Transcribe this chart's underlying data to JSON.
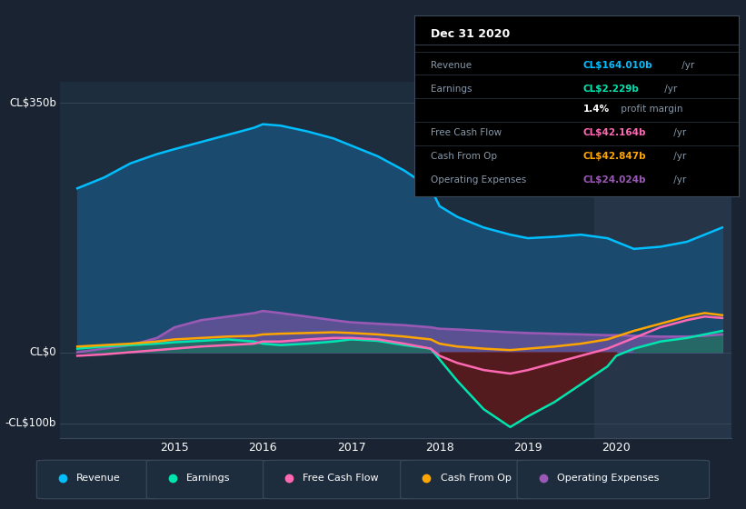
{
  "bg_color": "#1a2332",
  "plot_bg_color": "#1e2d3d",
  "highlight_bg": "#263547",
  "ylabel_top": "CL$350b",
  "ylabel_zero": "CL$0",
  "ylabel_bottom": "-CL$100b",
  "ylim": [
    -120,
    380
  ],
  "xlim": [
    2013.7,
    2021.3
  ],
  "x_ticks": [
    2015,
    2016,
    2017,
    2018,
    2019,
    2020
  ],
  "revenue_color": "#00bfff",
  "earnings_color": "#00e5b0",
  "fcf_color": "#ff69b4",
  "cashfromop_color": "#ffa500",
  "opex_color": "#9b59b6",
  "revenue_fill": "#1a4a6e",
  "earnings_fill_pos": "#1a6e5a",
  "earnings_fill_neg": "#5a1a1a",
  "tooltip_bg": "#000000",
  "tooltip_border": "#3a4a5a",
  "revenue_x": [
    2013.9,
    2014.2,
    2014.5,
    2014.8,
    2015.0,
    2015.3,
    2015.6,
    2015.9,
    2016.0,
    2016.2,
    2016.5,
    2016.8,
    2017.0,
    2017.3,
    2017.6,
    2017.9,
    2018.0,
    2018.2,
    2018.5,
    2018.8,
    2019.0,
    2019.3,
    2019.6,
    2019.9,
    2020.0,
    2020.2,
    2020.5,
    2020.8,
    2021.0,
    2021.2
  ],
  "revenue_y": [
    230,
    245,
    265,
    278,
    285,
    295,
    305,
    315,
    320,
    318,
    310,
    300,
    290,
    275,
    255,
    230,
    205,
    190,
    175,
    165,
    160,
    162,
    165,
    160,
    155,
    145,
    148,
    155,
    165,
    175
  ],
  "earnings_x": [
    2013.9,
    2014.2,
    2014.5,
    2014.8,
    2015.0,
    2015.3,
    2015.6,
    2015.9,
    2016.0,
    2016.2,
    2016.5,
    2016.8,
    2017.0,
    2017.3,
    2017.6,
    2017.9,
    2018.0,
    2018.2,
    2018.5,
    2018.8,
    2019.0,
    2019.3,
    2019.6,
    2019.9,
    2020.0,
    2020.2,
    2020.5,
    2020.8,
    2021.0,
    2021.2
  ],
  "earnings_y": [
    5,
    8,
    10,
    12,
    14,
    16,
    18,
    15,
    12,
    10,
    12,
    15,
    18,
    16,
    10,
    5,
    -10,
    -40,
    -80,
    -105,
    -90,
    -70,
    -45,
    -20,
    -5,
    5,
    15,
    20,
    25,
    30
  ],
  "fcf_x": [
    2013.9,
    2014.2,
    2014.5,
    2014.8,
    2015.0,
    2015.3,
    2015.6,
    2015.9,
    2016.0,
    2016.2,
    2016.5,
    2016.8,
    2017.0,
    2017.3,
    2017.6,
    2017.9,
    2018.0,
    2018.2,
    2018.5,
    2018.8,
    2019.0,
    2019.3,
    2019.6,
    2019.9,
    2020.0,
    2020.2,
    2020.5,
    2020.8,
    2021.0,
    2021.2
  ],
  "fcf_y": [
    -5,
    -3,
    0,
    3,
    5,
    8,
    10,
    12,
    15,
    15,
    18,
    20,
    20,
    18,
    12,
    5,
    -5,
    -15,
    -25,
    -30,
    -25,
    -15,
    -5,
    5,
    10,
    20,
    35,
    45,
    50,
    48
  ],
  "cashfromop_x": [
    2013.9,
    2014.2,
    2014.5,
    2014.8,
    2015.0,
    2015.3,
    2015.6,
    2015.9,
    2016.0,
    2016.2,
    2016.5,
    2016.8,
    2017.0,
    2017.3,
    2017.6,
    2017.9,
    2018.0,
    2018.2,
    2018.5,
    2018.8,
    2019.0,
    2019.3,
    2019.6,
    2019.9,
    2020.0,
    2020.2,
    2020.5,
    2020.8,
    2021.0,
    2021.2
  ],
  "cashfromop_y": [
    8,
    10,
    12,
    15,
    18,
    20,
    22,
    23,
    25,
    26,
    27,
    28,
    27,
    25,
    22,
    18,
    12,
    8,
    5,
    3,
    5,
    8,
    12,
    18,
    22,
    30,
    40,
    50,
    55,
    52
  ],
  "opex_x": [
    2013.9,
    2014.2,
    2014.5,
    2014.8,
    2015.0,
    2015.3,
    2015.6,
    2015.9,
    2016.0,
    2016.2,
    2016.5,
    2016.8,
    2017.0,
    2017.3,
    2017.6,
    2017.9,
    2018.0,
    2018.2,
    2018.5,
    2018.8,
    2019.0,
    2019.3,
    2019.6,
    2019.9,
    2020.0,
    2020.2,
    2020.5,
    2020.8,
    2021.0,
    2021.2
  ],
  "opex_y": [
    0,
    5,
    10,
    20,
    35,
    45,
    50,
    55,
    58,
    55,
    50,
    45,
    42,
    40,
    38,
    35,
    33,
    32,
    30,
    28,
    27,
    26,
    25,
    24,
    24,
    23,
    22,
    22,
    23,
    25
  ],
  "highlight_start": 2019.75,
  "highlight_end": 2021.3,
  "legend_items": [
    "Revenue",
    "Earnings",
    "Free Cash Flow",
    "Cash From Op",
    "Operating Expenses"
  ],
  "legend_colors": [
    "#00bfff",
    "#00e5b0",
    "#ff69b4",
    "#ffa500",
    "#9b59b6"
  ],
  "tooltip_rows": [
    {
      "label": "Revenue",
      "value": "CL$164.010b",
      "suffix": " /yr",
      "color": "#00bfff"
    },
    {
      "label": "Earnings",
      "value": "CL$2.229b",
      "suffix": " /yr",
      "color": "#00e5b0"
    },
    {
      "label": null,
      "value": "1.4%",
      "suffix": " profit margin",
      "color": "white"
    },
    {
      "label": "Free Cash Flow",
      "value": "CL$42.164b",
      "suffix": " /yr",
      "color": "#ff69b4"
    },
    {
      "label": "Cash From Op",
      "value": "CL$42.847b",
      "suffix": " /yr",
      "color": "#ffa500"
    },
    {
      "label": "Operating Expenses",
      "value": "CL$24.024b",
      "suffix": " /yr",
      "color": "#9b59b6"
    }
  ]
}
